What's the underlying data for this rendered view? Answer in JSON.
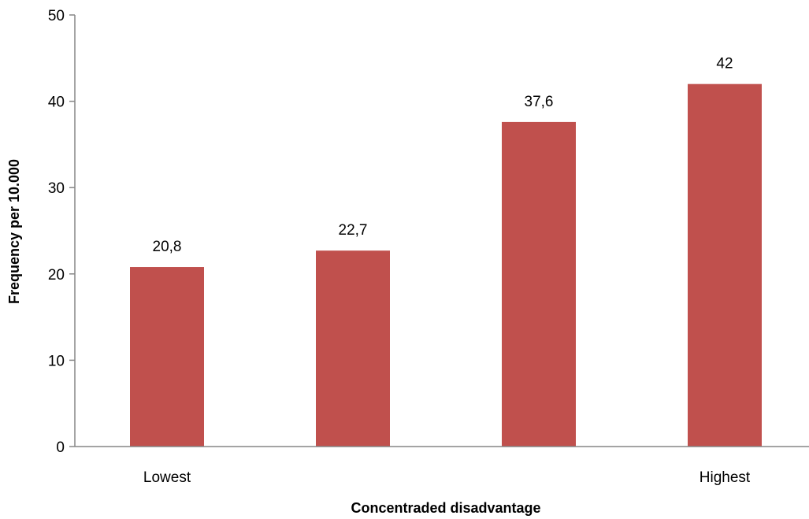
{
  "chart_data": {
    "type": "bar",
    "categories": [
      "Lowest",
      "",
      "",
      "Highest"
    ],
    "values": [
      20.8,
      22.7,
      37.6,
      42
    ],
    "data_labels": [
      "20,8",
      "22,7",
      "37,6",
      "42"
    ],
    "title": "",
    "xlabel": "Concentraded disadvantage",
    "ylabel": "Frequency per 10.000",
    "ylim": [
      0,
      50
    ],
    "yticks": [
      0,
      10,
      20,
      30,
      40,
      50
    ],
    "grid": false,
    "legend": "none",
    "bar_color": "#c0504d",
    "axis_color": "#868686"
  }
}
